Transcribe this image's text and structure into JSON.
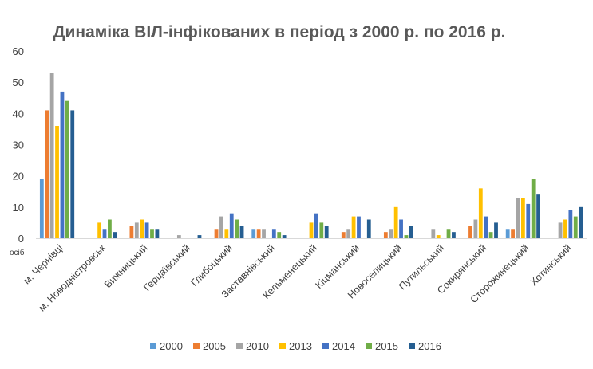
{
  "chart_data": {
    "type": "bar",
    "title": "Динаміка ВІЛ-інфікованих в період з 2000 р. по 2016 р.",
    "ylabel": "осіб",
    "ylim": [
      0,
      60
    ],
    "yticks": [
      0,
      10,
      20,
      30,
      40,
      50,
      60
    ],
    "grid": false,
    "legend_position": "bottom",
    "categories": [
      "м. Чернівці",
      "м. Новодністровськ",
      "Вижницький",
      "Герцаївський",
      "Глибоцький",
      "Заставнівський",
      "Кельменецький",
      "Кіцманський",
      "Новоселицький",
      "Путильський",
      "Сокирянський",
      "Сторожинецький",
      "Хотинський"
    ],
    "series": [
      {
        "name": "2000",
        "color": "#5B9BD5",
        "values": [
          19,
          0,
          0,
          0,
          0,
          3,
          0,
          0,
          0,
          0,
          0,
          3,
          0
        ]
      },
      {
        "name": "2005",
        "color": "#ED7D31",
        "values": [
          41,
          0,
          4,
          0,
          3,
          3,
          0,
          2,
          2,
          0,
          4,
          3,
          0
        ]
      },
      {
        "name": "2010",
        "color": "#A5A5A5",
        "values": [
          53,
          0,
          5,
          1,
          7,
          3,
          0,
          3,
          3,
          3,
          6,
          13,
          5
        ]
      },
      {
        "name": "2013",
        "color": "#FFC000",
        "values": [
          36,
          5,
          6,
          0,
          3,
          0,
          5,
          7,
          10,
          1,
          16,
          13,
          6
        ]
      },
      {
        "name": "2014",
        "color": "#4472C4",
        "values": [
          47,
          3,
          5,
          0,
          8,
          3,
          8,
          7,
          6,
          0,
          7,
          11,
          9
        ]
      },
      {
        "name": "2015",
        "color": "#70AD47",
        "values": [
          44,
          6,
          3,
          0,
          6,
          2,
          5,
          0,
          1,
          3,
          2,
          19,
          7
        ]
      },
      {
        "name": "2016",
        "color": "#255E91",
        "values": [
          41,
          2,
          3,
          1,
          4,
          1,
          4,
          6,
          4,
          2,
          5,
          14,
          10
        ]
      }
    ]
  }
}
